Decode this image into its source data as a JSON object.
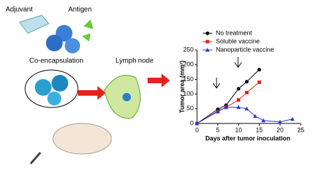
{
  "diagram": {
    "adjuvant": "Adjuvant",
    "antigen": "Antigen",
    "coencapsulation": "Co-encapsulation",
    "lymph_node": "Lymph node"
  },
  "chart_data": {
    "type": "line",
    "x_label": "Days after tumor inoculation",
    "y_label": "Tumor area (mm²)",
    "xlim": [
      0,
      25
    ],
    "xticks": [
      0,
      5,
      10,
      15,
      20,
      25
    ],
    "ylim": [
      0,
      250
    ],
    "yticks": [
      0,
      50,
      100,
      150,
      200,
      250
    ],
    "legend": "top-left",
    "series": [
      {
        "name": "No treatment",
        "color": "#000000",
        "marker": "circle",
        "x": [
          0,
          5,
          7,
          10,
          12,
          15
        ],
        "values": [
          0,
          48,
          62,
          118,
          142,
          183
        ]
      },
      {
        "name": "Soluble vaccine",
        "color": "#e8211b",
        "marker": "square",
        "x": [
          0,
          5,
          7,
          10,
          12,
          15
        ],
        "values": [
          0,
          40,
          55,
          80,
          105,
          140
        ]
      },
      {
        "name": "Nanoparticle vaccine",
        "color": "#2434d6",
        "marker": "triangle",
        "x": [
          0,
          5,
          7,
          10,
          12,
          14,
          16,
          20,
          23
        ],
        "values": [
          0,
          42,
          55,
          55,
          50,
          25,
          10,
          5,
          15
        ]
      }
    ]
  }
}
